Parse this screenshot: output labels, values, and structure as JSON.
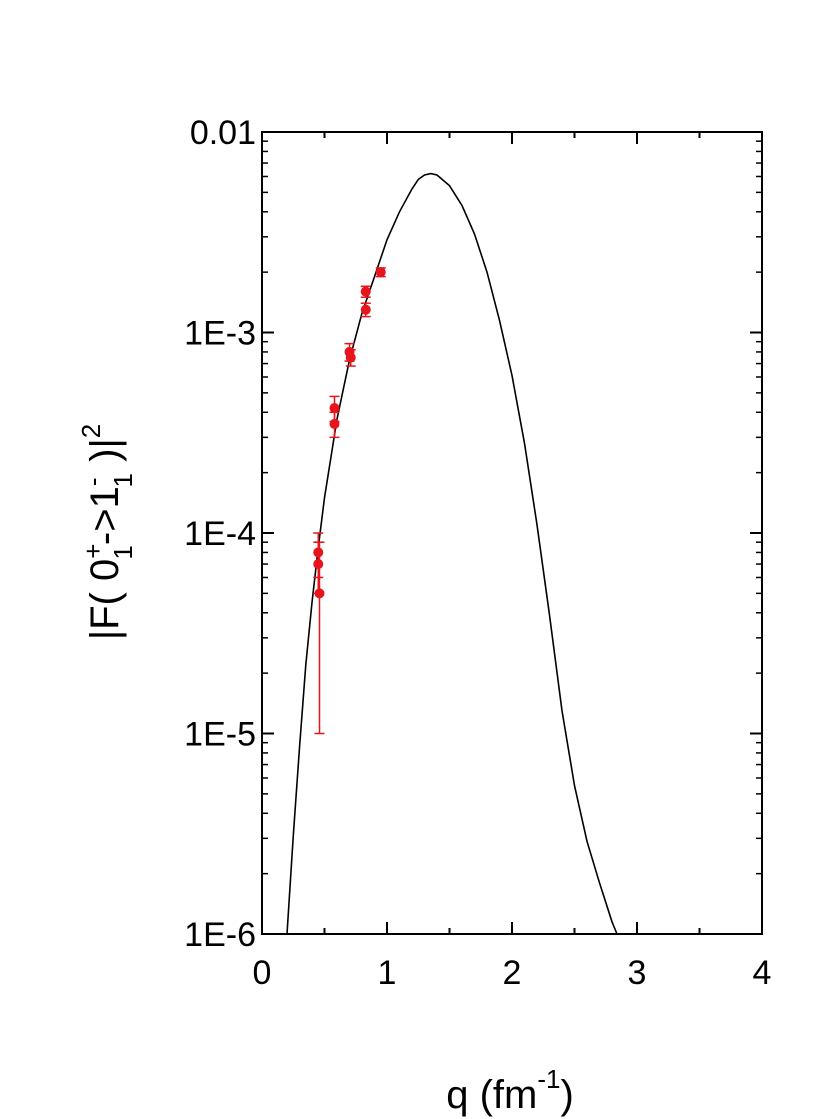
{
  "chart_data": {
    "type": "scatter",
    "xlabel": "q (fm-1)",
    "xlabel_parts": {
      "base": "q (fm",
      "sup": "-1",
      "close": ")"
    },
    "ylabel": "|F( 0₁⁺->1₁⁻ )|²",
    "ylabel_parts": {
      "p1": "|F( 0",
      "p1_sup": "+",
      "p1_sub": "1",
      "p2": "->1",
      "p2_sup": "-",
      "p2_sub": "1",
      "p3": " )|",
      "p3_sup": "2"
    },
    "xlim": [
      0,
      4
    ],
    "ylim": [
      1e-06,
      0.01
    ],
    "yscale": "log",
    "grid": false,
    "x_ticks": [
      {
        "value": 0,
        "label": "0"
      },
      {
        "value": 1,
        "label": "1"
      },
      {
        "value": 2,
        "label": "2"
      },
      {
        "value": 3,
        "label": "3"
      },
      {
        "value": 4,
        "label": "4"
      }
    ],
    "y_ticks": [
      {
        "value": 0.01,
        "label": "0.01"
      },
      {
        "value": 0.001,
        "label": "1E-3"
      },
      {
        "value": 0.0001,
        "label": "1E-4"
      },
      {
        "value": 1e-05,
        "label": "1E-5"
      },
      {
        "value": 1e-06,
        "label": "1E-6"
      }
    ],
    "series": [
      {
        "kind": "line",
        "color": "#000000",
        "points": [
          [
            0.2,
            1e-06
          ],
          [
            0.25,
            3.1e-06
          ],
          [
            0.3,
            8.5e-06
          ],
          [
            0.35,
            2.2e-05
          ],
          [
            0.4,
            4.5e-05
          ],
          [
            0.45,
            8.5e-05
          ],
          [
            0.5,
            0.00015
          ],
          [
            0.6,
            0.00037
          ],
          [
            0.7,
            0.00073
          ],
          [
            0.8,
            0.00125
          ],
          [
            0.9,
            0.0019
          ],
          [
            1.0,
            0.0029
          ],
          [
            1.1,
            0.004
          ],
          [
            1.2,
            0.0052
          ],
          [
            1.25,
            0.0058
          ],
          [
            1.3,
            0.0061
          ],
          [
            1.35,
            0.0062
          ],
          [
            1.4,
            0.0061
          ],
          [
            1.5,
            0.0054
          ],
          [
            1.6,
            0.0043
          ],
          [
            1.7,
            0.0031
          ],
          [
            1.8,
            0.002
          ],
          [
            1.9,
            0.00115
          ],
          [
            2.0,
            0.00061
          ],
          [
            2.1,
            0.00028
          ],
          [
            2.2,
            0.00011
          ],
          [
            2.3,
            3.9e-05
          ],
          [
            2.4,
            1.3e-05
          ],
          [
            2.5,
            5.5e-06
          ],
          [
            2.6,
            2.9e-06
          ],
          [
            2.7,
            1.8e-06
          ],
          [
            2.8,
            1.15e-06
          ],
          [
            2.84,
            1e-06
          ]
        ]
      },
      {
        "kind": "scatter",
        "color": "#e8141c",
        "points": [
          {
            "x": 0.45,
            "y": 8e-05,
            "lo": 6e-05,
            "hi": 0.0001
          },
          {
            "x": 0.45,
            "y": 7e-05,
            "lo": 5e-05,
            "hi": 9e-05
          },
          {
            "x": 0.46,
            "y": 5e-05,
            "lo": 1e-05,
            "hi": 9e-05
          },
          {
            "x": 0.58,
            "y": 0.00042,
            "lo": 0.00036,
            "hi": 0.00048
          },
          {
            "x": 0.58,
            "y": 0.00035,
            "lo": 0.0003,
            "hi": 0.0004
          },
          {
            "x": 0.7,
            "y": 0.0008,
            "lo": 0.00072,
            "hi": 0.00088
          },
          {
            "x": 0.71,
            "y": 0.00075,
            "lo": 0.00068,
            "hi": 0.00082
          },
          {
            "x": 0.83,
            "y": 0.0016,
            "lo": 0.0015,
            "hi": 0.0017
          },
          {
            "x": 0.83,
            "y": 0.0013,
            "lo": 0.0012,
            "hi": 0.0014
          },
          {
            "x": 0.95,
            "y": 0.002,
            "lo": 0.0019,
            "hi": 0.0021
          }
        ]
      }
    ]
  }
}
